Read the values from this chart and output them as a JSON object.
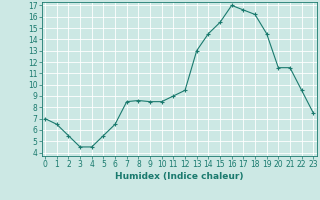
{
  "x": [
    0,
    1,
    2,
    3,
    4,
    5,
    6,
    7,
    8,
    9,
    10,
    11,
    12,
    13,
    14,
    15,
    16,
    17,
    18,
    19,
    20,
    21,
    22,
    23
  ],
  "y": [
    7.0,
    6.5,
    5.5,
    4.5,
    4.5,
    5.5,
    6.5,
    8.5,
    8.6,
    8.5,
    8.5,
    9.0,
    9.5,
    13.0,
    14.5,
    15.5,
    17.0,
    16.6,
    16.2,
    14.5,
    11.5,
    11.5,
    9.5,
    7.5
  ],
  "line_color": "#1a7a6e",
  "marker": "+",
  "bg_color": "#cce8e4",
  "grid_color": "#b0d8d2",
  "xlabel": "Humidex (Indice chaleur)",
  "ylim_min": 4,
  "ylim_max": 17,
  "xlim_min": 0,
  "xlim_max": 23,
  "yticks": [
    4,
    5,
    6,
    7,
    8,
    9,
    10,
    11,
    12,
    13,
    14,
    15,
    16,
    17
  ],
  "xticks": [
    0,
    1,
    2,
    3,
    4,
    5,
    6,
    7,
    8,
    9,
    10,
    11,
    12,
    13,
    14,
    15,
    16,
    17,
    18,
    19,
    20,
    21,
    22,
    23
  ],
  "tick_fontsize": 5.5,
  "label_fontsize": 6.5
}
